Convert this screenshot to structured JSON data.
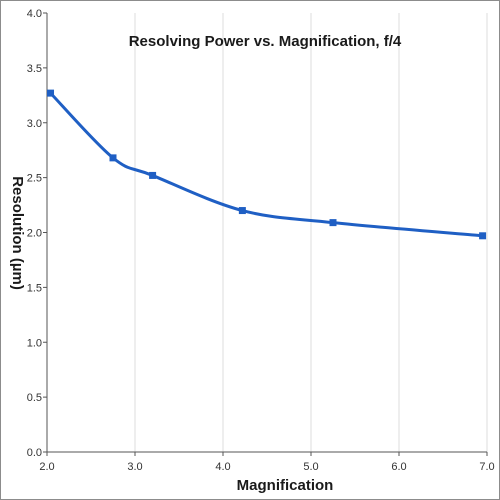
{
  "chart_data": {
    "type": "line",
    "title": "Resolving Power vs. Magnification, f/4",
    "xlabel": "Magnification",
    "ylabel": "Resolution (µm)",
    "xlim": [
      2.0,
      7.0
    ],
    "ylim": [
      0.0,
      4.0
    ],
    "x_ticks": [
      "2.0",
      "3.0",
      "4.0",
      "5.0",
      "6.0",
      "7.0"
    ],
    "y_ticks": [
      "0.0",
      "0.5",
      "1.0",
      "1.5",
      "2.0",
      "2.5",
      "3.0",
      "3.5",
      "4.0"
    ],
    "grid": "vertical",
    "legend": "none",
    "smooth": true,
    "series": [
      {
        "color": "#1f5fc4",
        "marker": "square",
        "x": [
          2.04,
          2.75,
          3.2,
          4.22,
          5.25,
          6.95
        ],
        "y": [
          3.27,
          2.68,
          2.52,
          2.2,
          2.09,
          1.97
        ]
      }
    ]
  }
}
